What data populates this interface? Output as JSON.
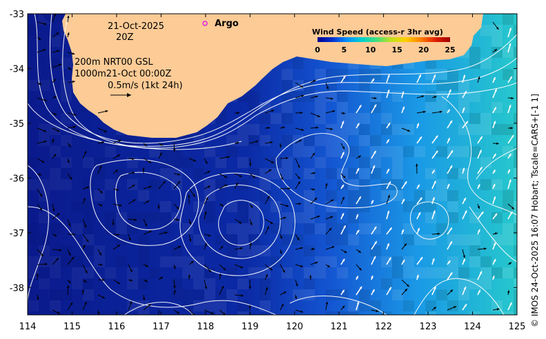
{
  "map": {
    "lon_range": [
      114,
      125
    ],
    "lat_range": [
      -38.5,
      -33
    ],
    "lon_ticks": [
      "114",
      "115",
      "116",
      "117",
      "118",
      "119",
      "120",
      "121",
      "122",
      "123",
      "124",
      "125"
    ],
    "lat_ticks": [
      "-33",
      "-34",
      "-35",
      "-36",
      "-37",
      "-38"
    ],
    "colors": {
      "land": "#fccb96",
      "ocean_deep": "#0a1a8c",
      "ocean_mid": "#1446c8",
      "ocean_light": "#1e9ee6",
      "ocean_cyan": "#28c8c8",
      "arrow_dark": "#000000",
      "arrow_light": "#ffffff",
      "argo_marker": "#e020e0"
    }
  },
  "annotations": {
    "date": "21-Oct-2025",
    "hour": "20Z",
    "contours": "200m  NRT00 GSL",
    "contours2": "1000m21-Oct 00:00Z",
    "scale": "0.5m/s (1kt 24h)",
    "argo": "Argo"
  },
  "colorbar": {
    "title": "Wind Speed (access-r 3hr avg)",
    "ticks": [
      "0",
      "5",
      "10",
      "15",
      "20",
      "25"
    ],
    "colors": [
      "#000090",
      "#0030d0",
      "#0090ff",
      "#00d0d0",
      "#40e080",
      "#c0e020",
      "#ffd000",
      "#ff8000",
      "#e02000",
      "#a00000"
    ]
  },
  "credit": "© IMOS 24-Oct-2025 16:07 Hobart; Tscale=CARS+[-1 1]"
}
